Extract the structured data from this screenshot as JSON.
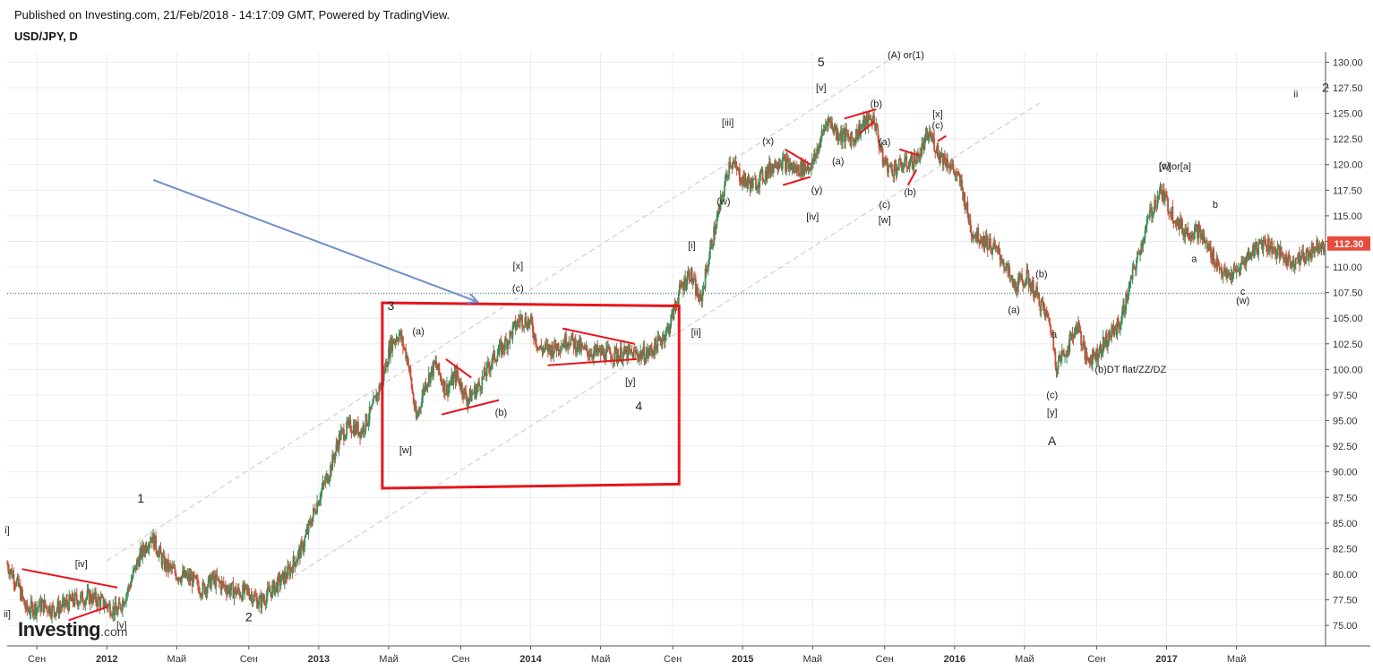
{
  "header": {
    "published": "Published on Investing.com, 21/Feb/2018 - 14:17:09 GMT, Powered by TradingView.",
    "symbol": "USD/JPY, D"
  },
  "logo": {
    "main": "Investing",
    "suffix": ".com"
  },
  "colors": {
    "up": "#3b8f5a",
    "down": "#c8503a",
    "trendline": "#e8141c",
    "arrow": "#6f8fc9",
    "channel": "#c8c8c8",
    "hline": "#3a7a7a",
    "price_badge": "#e74c3c"
  },
  "chart_data": {
    "type": "candlestick",
    "symbol": "USD/JPY",
    "timeframe": "D",
    "current_price_label": "112.30",
    "ylim": [
      73,
      131
    ],
    "xlim": [
      2011.53,
      2017.75
    ],
    "y_ticks": [
      75.0,
      77.5,
      80.0,
      82.5,
      85.0,
      87.5,
      90.0,
      92.5,
      95.0,
      97.5,
      100.0,
      102.5,
      105.0,
      107.5,
      110.0,
      112.5,
      115.0,
      117.5,
      120.0,
      122.5,
      125.0,
      127.5,
      130.0
    ],
    "x_ticks": [
      {
        "t": 2011.67,
        "label": "Сен"
      },
      {
        "t": 2012.0,
        "label": "2012"
      },
      {
        "t": 2012.33,
        "label": "Май"
      },
      {
        "t": 2012.67,
        "label": "Сен"
      },
      {
        "t": 2013.0,
        "label": "2013"
      },
      {
        "t": 2013.33,
        "label": "Май"
      },
      {
        "t": 2013.67,
        "label": "Сен"
      },
      {
        "t": 2014.0,
        "label": "2014"
      },
      {
        "t": 2014.33,
        "label": "Май"
      },
      {
        "t": 2014.67,
        "label": "Сен"
      },
      {
        "t": 2015.0,
        "label": "2015"
      },
      {
        "t": 2015.33,
        "label": "Май"
      },
      {
        "t": 2015.67,
        "label": "Сен"
      },
      {
        "t": 2016.0,
        "label": "2016"
      },
      {
        "t": 2016.33,
        "label": "Май"
      },
      {
        "t": 2016.67,
        "label": "Сен"
      },
      {
        "t": 2017.0,
        "label": "2017"
      },
      {
        "t": 2017.33,
        "label": "Май"
      }
    ],
    "price_path": [
      [
        2011.53,
        81.0
      ],
      [
        2011.58,
        79.0
      ],
      [
        2011.62,
        76.5
      ],
      [
        2011.7,
        77.0
      ],
      [
        2011.75,
        76.5
      ],
      [
        2011.85,
        77.5
      ],
      [
        2011.92,
        77.8
      ],
      [
        2012.0,
        77.0
      ],
      [
        2012.05,
        76.3
      ],
      [
        2012.1,
        78.5
      ],
      [
        2012.15,
        81.5
      ],
      [
        2012.21,
        83.8
      ],
      [
        2012.27,
        81.0
      ],
      [
        2012.33,
        80.0
      ],
      [
        2012.4,
        79.5
      ],
      [
        2012.45,
        78.5
      ],
      [
        2012.5,
        79.5
      ],
      [
        2012.58,
        78.5
      ],
      [
        2012.63,
        78.2
      ],
      [
        2012.67,
        78.3
      ],
      [
        2012.72,
        77.2
      ],
      [
        2012.78,
        78.5
      ],
      [
        2012.85,
        80.0
      ],
      [
        2012.92,
        82.5
      ],
      [
        2012.96,
        85.0
      ],
      [
        2013.0,
        87.5
      ],
      [
        2013.05,
        90.0
      ],
      [
        2013.1,
        93.5
      ],
      [
        2013.15,
        94.5
      ],
      [
        2013.2,
        94.0
      ],
      [
        2013.25,
        96.0
      ],
      [
        2013.3,
        99.0
      ],
      [
        2013.34,
        102.5
      ],
      [
        2013.38,
        103.5
      ],
      [
        2013.42,
        101.0
      ],
      [
        2013.46,
        95.0
      ],
      [
        2013.5,
        98.5
      ],
      [
        2013.55,
        100.5
      ],
      [
        2013.6,
        98.0
      ],
      [
        2013.65,
        99.5
      ],
      [
        2013.7,
        97.0
      ],
      [
        2013.76,
        98.5
      ],
      [
        2013.82,
        101.0
      ],
      [
        2013.88,
        102.5
      ],
      [
        2013.95,
        105.0
      ],
      [
        2014.0,
        104.5
      ],
      [
        2014.04,
        102.0
      ],
      [
        2014.1,
        102.0
      ],
      [
        2014.18,
        103.0
      ],
      [
        2014.25,
        101.8
      ],
      [
        2014.35,
        101.5
      ],
      [
        2014.45,
        101.5
      ],
      [
        2014.55,
        101.5
      ],
      [
        2014.6,
        102.5
      ],
      [
        2014.65,
        104.0
      ],
      [
        2014.7,
        107.5
      ],
      [
        2014.75,
        109.5
      ],
      [
        2014.8,
        106.5
      ],
      [
        2014.85,
        112.0
      ],
      [
        2014.9,
        116.5
      ],
      [
        2014.94,
        120.5
      ],
      [
        2015.0,
        118.5
      ],
      [
        2015.05,
        118.0
      ],
      [
        2015.1,
        119.0
      ],
      [
        2015.17,
        120.5
      ],
      [
        2015.25,
        119.5
      ],
      [
        2015.33,
        120.0
      ],
      [
        2015.4,
        124.5
      ],
      [
        2015.45,
        123.0
      ],
      [
        2015.52,
        122.5
      ],
      [
        2015.57,
        124.0
      ],
      [
        2015.62,
        124.5
      ],
      [
        2015.66,
        120.5
      ],
      [
        2015.7,
        119.5
      ],
      [
        2015.76,
        120.0
      ],
      [
        2015.82,
        120.5
      ],
      [
        2015.88,
        123.0
      ],
      [
        2015.93,
        121.0
      ],
      [
        2015.98,
        120.0
      ],
      [
        2016.03,
        118.0
      ],
      [
        2016.08,
        113.5
      ],
      [
        2016.15,
        112.5
      ],
      [
        2016.22,
        111.0
      ],
      [
        2016.28,
        108.0
      ],
      [
        2016.34,
        109.0
      ],
      [
        2016.38,
        107.5
      ],
      [
        2016.45,
        104.5
      ],
      [
        2016.48,
        100.5
      ],
      [
        2016.53,
        102.0
      ],
      [
        2016.58,
        104.5
      ],
      [
        2016.62,
        101.0
      ],
      [
        2016.67,
        101.5
      ],
      [
        2016.72,
        103.0
      ],
      [
        2016.78,
        104.5
      ],
      [
        2016.85,
        110.0
      ],
      [
        2016.92,
        115.0
      ],
      [
        2016.97,
        117.5
      ],
      [
        2017.02,
        115.5
      ],
      [
        2017.08,
        113.5
      ],
      [
        2017.15,
        113.5
      ],
      [
        2017.22,
        111.0
      ],
      [
        2017.28,
        109.0
      ],
      [
        2017.33,
        109.5
      ],
      [
        2017.4,
        111.5
      ],
      [
        2017.46,
        112.5
      ],
      [
        2017.52,
        111.5
      ],
      [
        2017.58,
        110.5
      ],
      [
        2017.65,
        111.0
      ],
      [
        2017.72,
        112.3
      ]
    ],
    "horizontal_line": 107.4,
    "channels": [
      {
        "from": [
          2012.0,
          81.3
        ],
        "to": [
          2015.75,
          131.0
        ]
      },
      {
        "from": [
          2012.67,
          77.0
        ],
        "to": [
          2016.4,
          126.0
        ]
      }
    ],
    "box": {
      "corners": [
        [
          2013.3,
          106.5
        ],
        [
          2014.7,
          106.2
        ],
        [
          2014.7,
          88.8
        ],
        [
          2013.3,
          88.4
        ]
      ]
    },
    "arrow": {
      "from": [
        2012.22,
        118.5
      ],
      "to": [
        2013.75,
        106.6
      ]
    },
    "trendlines": [
      [
        [
          2011.6,
          80.5
        ],
        [
          2012.05,
          78.7
        ]
      ],
      [
        [
          2011.82,
          75.5
        ],
        [
          2012.0,
          76.8
        ]
      ],
      [
        [
          2013.58,
          95.6
        ],
        [
          2013.85,
          97.0
        ]
      ],
      [
        [
          2013.6,
          101.0
        ],
        [
          2013.72,
          99.2
        ]
      ],
      [
        [
          2014.15,
          104.0
        ],
        [
          2014.49,
          102.5
        ]
      ],
      [
        [
          2014.08,
          100.4
        ],
        [
          2014.5,
          101.0
        ]
      ],
      [
        [
          2015.2,
          121.5
        ],
        [
          2015.32,
          120.0
        ]
      ],
      [
        [
          2015.19,
          118.0
        ],
        [
          2015.32,
          118.8
        ]
      ],
      [
        [
          2015.48,
          124.5
        ],
        [
          2015.63,
          125.4
        ]
      ],
      [
        [
          2015.55,
          123.0
        ],
        [
          2015.62,
          124.2
        ]
      ],
      [
        [
          2015.74,
          121.5
        ],
        [
          2015.83,
          120.9
        ]
      ],
      [
        [
          2015.78,
          118.0
        ],
        [
          2015.82,
          119.5
        ]
      ],
      [
        [
          2015.92,
          122.3
        ],
        [
          2015.96,
          122.8
        ]
      ]
    ],
    "annotations": [
      {
        "text": "i]",
        "t": 2011.53,
        "p": 84.0
      },
      {
        "text": "ii]",
        "t": 2011.53,
        "p": 75.8
      },
      {
        "text": "[iv]",
        "t": 2011.88,
        "p": 80.7
      },
      {
        "text": "[v]",
        "t": 2012.07,
        "p": 74.7
      },
      {
        "text": "1",
        "t": 2012.16,
        "p": 87.0
      },
      {
        "text": "2",
        "t": 2012.67,
        "p": 75.4
      },
      {
        "text": "3",
        "t": 2013.34,
        "p": 105.8
      },
      {
        "text": "(a)",
        "t": 2013.47,
        "p": 103.4
      },
      {
        "text": "[w]",
        "t": 2013.41,
        "p": 91.8
      },
      {
        "text": "(b)",
        "t": 2013.86,
        "p": 95.5
      },
      {
        "text": "[x]",
        "t": 2013.94,
        "p": 109.8
      },
      {
        "text": "(c)",
        "t": 2013.94,
        "p": 107.6
      },
      {
        "text": "[y]",
        "t": 2014.47,
        "p": 98.5
      },
      {
        "text": "4",
        "t": 2014.51,
        "p": 96.0
      },
      {
        "text": "[ii]",
        "t": 2014.78,
        "p": 103.3
      },
      {
        "text": "[i]",
        "t": 2014.76,
        "p": 111.8
      },
      {
        "text": "(w)",
        "t": 2014.91,
        "p": 116.1
      },
      {
        "text": "[iii]",
        "t": 2014.93,
        "p": 123.8
      },
      {
        "text": "(x)",
        "t": 2015.12,
        "p": 122.0
      },
      {
        "text": "(y)",
        "t": 2015.35,
        "p": 117.2
      },
      {
        "text": "[iv]",
        "t": 2015.33,
        "p": 114.6
      },
      {
        "text": "(a)",
        "t": 2015.45,
        "p": 120.0
      },
      {
        "text": "5",
        "t": 2015.37,
        "p": 129.6
      },
      {
        "text": "[v]",
        "t": 2015.37,
        "p": 127.2
      },
      {
        "text": "(A) or(1)",
        "t": 2015.77,
        "p": 130.4
      },
      {
        "text": "(b)",
        "t": 2015.63,
        "p": 125.6
      },
      {
        "text": "(a)",
        "t": 2015.67,
        "p": 121.9
      },
      {
        "text": "(c)",
        "t": 2015.67,
        "p": 115.8
      },
      {
        "text": "[w]",
        "t": 2015.67,
        "p": 114.3
      },
      {
        "text": "(b)",
        "t": 2015.79,
        "p": 117.0
      },
      {
        "text": "[x]",
        "t": 2015.92,
        "p": 124.6
      },
      {
        "text": "(c)",
        "t": 2015.92,
        "p": 123.5
      },
      {
        "text": "(b)",
        "t": 2016.41,
        "p": 109.0
      },
      {
        "text": "(a)",
        "t": 2016.28,
        "p": 105.5
      },
      {
        "text": "a",
        "t": 2016.47,
        "p": 103.1
      },
      {
        "text": "(c)",
        "t": 2016.46,
        "p": 97.2
      },
      {
        "text": "[y]",
        "t": 2016.46,
        "p": 95.5
      },
      {
        "text": "A",
        "t": 2016.46,
        "p": 92.6
      },
      {
        "text": "(b)DT flat/ZZ/DZ",
        "t": 2016.83,
        "p": 99.7
      },
      {
        "text": "(c)",
        "t": 2016.99,
        "p": 119.6
      },
      {
        "text": "[w]or[a]",
        "t": 2017.04,
        "p": 119.5
      },
      {
        "text": "b",
        "t": 2017.23,
        "p": 115.8
      },
      {
        "text": "a",
        "t": 2017.13,
        "p": 110.5
      },
      {
        "text": "c",
        "t": 2017.36,
        "p": 107.3
      },
      {
        "text": "(w)",
        "t": 2017.36,
        "p": 106.4
      },
      {
        "text": "ii",
        "t": 2017.61,
        "p": 126.6
      },
      {
        "text": "2",
        "t": 2017.75,
        "p": 127.1
      }
    ]
  }
}
